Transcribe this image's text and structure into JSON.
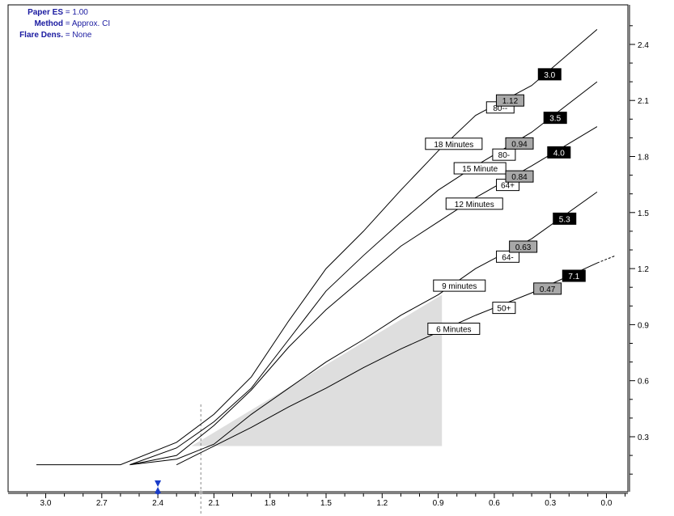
{
  "info": {
    "paper_es": {
      "key": "Paper ES",
      "value": "1.00"
    },
    "method": {
      "key": "Method",
      "value": "Approx. CI"
    },
    "flare": {
      "key": "Flare Dens.",
      "value": "None"
    }
  },
  "colors": {
    "info_text": "#1a1aa0",
    "marker": "#1a3cc8",
    "shade": "#dedede",
    "curve": "#000000"
  },
  "chart_data": {
    "type": "line",
    "x_axis": {
      "range": [
        3.0,
        0.0
      ],
      "reversed": true,
      "ticks": [
        "3.0",
        "2.7",
        "2.4",
        "2.1",
        "1.8",
        "1.5",
        "1.2",
        "0.9",
        "0.6",
        "0.3",
        "0.0"
      ]
    },
    "y_axis": {
      "range": [
        0.0,
        2.45
      ],
      "position": "right",
      "ticks": [
        "0.3",
        "0.6",
        "0.9",
        "1.2",
        "1.5",
        "1.8",
        "2.1",
        "2.4"
      ]
    },
    "markers": [
      {
        "name": "blue-marker",
        "x": 2.4
      },
      {
        "name": "grey-marker",
        "x": 2.17,
        "dashed_line": true
      }
    ],
    "shaded_region": {
      "points": [
        [
          2.22,
          0.25
        ],
        [
          0.88,
          1.06
        ],
        [
          0.88,
          0.25
        ]
      ]
    },
    "series": [
      {
        "label": "18 Minutes",
        "points": [
          [
            3.05,
            0.15
          ],
          [
            2.6,
            0.15
          ],
          [
            2.3,
            0.27
          ],
          [
            2.1,
            0.42
          ],
          [
            1.9,
            0.62
          ],
          [
            1.7,
            0.92
          ],
          [
            1.5,
            1.2
          ],
          [
            1.3,
            1.4
          ],
          [
            1.1,
            1.62
          ],
          [
            0.9,
            1.83
          ],
          [
            0.7,
            2.02
          ],
          [
            0.4,
            2.18
          ],
          [
            0.05,
            2.48
          ]
        ],
        "mid_label": "80--",
        "mid_box": "1.12",
        "end_box": "3.0"
      },
      {
        "label": "15 Minute",
        "points": [
          [
            2.55,
            0.15
          ],
          [
            2.3,
            0.24
          ],
          [
            2.1,
            0.38
          ],
          [
            1.9,
            0.56
          ],
          [
            1.7,
            0.82
          ],
          [
            1.5,
            1.08
          ],
          [
            1.3,
            1.27
          ],
          [
            1.1,
            1.45
          ],
          [
            0.9,
            1.62
          ],
          [
            0.7,
            1.75
          ],
          [
            0.4,
            1.93
          ],
          [
            0.05,
            2.2
          ]
        ],
        "mid_label": "80-",
        "mid_box": "0.94",
        "end_box": "3.5"
      },
      {
        "label": "12 Minutes",
        "points": [
          [
            2.55,
            0.15
          ],
          [
            2.3,
            0.2
          ],
          [
            2.1,
            0.36
          ],
          [
            1.9,
            0.55
          ],
          [
            1.7,
            0.78
          ],
          [
            1.5,
            0.98
          ],
          [
            1.3,
            1.15
          ],
          [
            1.1,
            1.32
          ],
          [
            0.9,
            1.45
          ],
          [
            0.7,
            1.58
          ],
          [
            0.4,
            1.75
          ],
          [
            0.05,
            1.96
          ]
        ],
        "mid_label": "64+",
        "mid_box": "0.84",
        "end_box": "4.0"
      },
      {
        "label": "9 minutes",
        "points": [
          [
            2.55,
            0.15
          ],
          [
            2.3,
            0.18
          ],
          [
            2.1,
            0.26
          ],
          [
            1.9,
            0.42
          ],
          [
            1.7,
            0.56
          ],
          [
            1.5,
            0.7
          ],
          [
            1.3,
            0.82
          ],
          [
            1.1,
            0.95
          ],
          [
            0.9,
            1.06
          ],
          [
            0.7,
            1.2
          ],
          [
            0.4,
            1.36
          ],
          [
            0.05,
            1.61
          ]
        ],
        "mid_label": "64-",
        "mid_box": "0.63",
        "end_box": "5.3"
      },
      {
        "label": "6 Minutes",
        "points": [
          [
            2.3,
            0.15
          ],
          [
            2.2,
            0.2
          ],
          [
            2.1,
            0.25
          ],
          [
            1.9,
            0.35
          ],
          [
            1.7,
            0.46
          ],
          [
            1.5,
            0.56
          ],
          [
            1.3,
            0.67
          ],
          [
            1.1,
            0.77
          ],
          [
            0.9,
            0.86
          ],
          [
            0.7,
            0.95
          ],
          [
            0.4,
            1.07
          ],
          [
            0.05,
            1.23
          ],
          [
            -0.05,
            1.27
          ]
        ],
        "mid_label": "50+",
        "mid_box": "0.47",
        "end_box": "7.1"
      }
    ],
    "grid": false,
    "legend": "none"
  }
}
